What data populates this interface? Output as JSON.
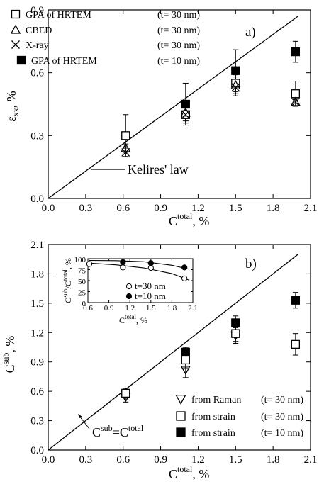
{
  "chart_data": [
    {
      "type": "scatter",
      "panel_label": "a)",
      "xlabel_base": "C",
      "xlabel_sup": "total",
      "xlabel_suffix": ", %",
      "ylabel_base": "ε",
      "ylabel_sub": "xx",
      "ylabel_suffix": ", %",
      "xlim": [
        0.0,
        2.1
      ],
      "ylim": [
        0.0,
        0.9
      ],
      "xticks": [
        "0.0",
        "0.3",
        "0.6",
        "0.9",
        "1.2",
        "1.5",
        "1.8",
        "2.1"
      ],
      "yticks": [
        "0.0",
        "0.3",
        "0.6",
        "0.9"
      ],
      "legend_placement": "top-left",
      "series": [
        {
          "name": "GPA of HRTEM",
          "param": "(t= 30 nm)",
          "marker": "square-open",
          "points": [
            {
              "x": 0.62,
              "y": 0.3,
              "err": 0.1
            },
            {
              "x": 1.1,
              "y": 0.4,
              "err": 0.04
            },
            {
              "x": 1.5,
              "y": 0.55,
              "err": 0.04
            },
            {
              "x": 1.98,
              "y": 0.5,
              "err": 0.06
            }
          ]
        },
        {
          "name": "CBED",
          "param": "(t= 30 nm)",
          "marker": "triangle-open",
          "points": [
            {
              "x": 0.62,
              "y": 0.24,
              "err": 0.02
            },
            {
              "x": 1.1,
              "y": 0.41,
              "err": 0.04
            },
            {
              "x": 1.5,
              "y": 0.54,
              "err": 0.04
            },
            {
              "x": 1.98,
              "y": 0.46,
              "err": 0.02
            }
          ]
        },
        {
          "name": "X-ray",
          "param": "(t= 30 nm)",
          "marker": "cross",
          "points": [
            {
              "x": 0.62,
              "y": 0.22,
              "err": 0.02
            },
            {
              "x": 1.1,
              "y": 0.4,
              "err": 0.04
            },
            {
              "x": 1.5,
              "y": 0.53,
              "err": 0.04
            },
            {
              "x": 1.98,
              "y": 0.46,
              "err": 0.02
            }
          ]
        },
        {
          "name": "GPA of HRTEM",
          "param": "(t= 10 nm)",
          "marker": "square-filled",
          "points": [
            {
              "x": 1.1,
              "y": 0.45,
              "err": 0.1
            },
            {
              "x": 1.5,
              "y": 0.61,
              "err": 0.1
            },
            {
              "x": 1.98,
              "y": 0.7,
              "err": 0.05
            }
          ]
        }
      ],
      "line": {
        "x": [
          0.0,
          2.0
        ],
        "y": [
          0.0,
          0.87
        ]
      },
      "annotation": {
        "text": "Kelires' law",
        "x": 0.34,
        "y": 0.2
      }
    },
    {
      "type": "scatter",
      "panel_label": "b)",
      "xlabel_base": "C",
      "xlabel_sup": "total",
      "xlabel_suffix": ", %",
      "ylabel_base": "C",
      "ylabel_sup": "sub",
      "ylabel_suffix": ", %",
      "xlim": [
        0.0,
        2.1
      ],
      "ylim": [
        0.0,
        2.1
      ],
      "xticks": [
        "0.0",
        "0.3",
        "0.6",
        "0.9",
        "1.2",
        "1.5",
        "1.8",
        "2.1"
      ],
      "yticks": [
        "0.0",
        "0.3",
        "0.6",
        "0.9",
        "1.2",
        "1.5",
        "1.8",
        "2.1"
      ],
      "legend_placement": "bottom-right",
      "series": [
        {
          "name": "from Raman",
          "param": "(t= 30 nm)",
          "marker": "triangle-down-open",
          "points": [
            {
              "x": 0.62,
              "y": 0.54,
              "err": 0.05
            },
            {
              "x": 1.1,
              "y": 0.82,
              "err": 0.08
            },
            {
              "x": 1.5,
              "y": 1.17,
              "err": 0.08
            }
          ]
        },
        {
          "name": "from strain",
          "param": "(t= 30 nm)",
          "marker": "square-open",
          "points": [
            {
              "x": 0.62,
              "y": 0.58,
              "err": 0.05
            },
            {
              "x": 1.1,
              "y": 0.92,
              "err": 0.08
            },
            {
              "x": 1.5,
              "y": 1.19,
              "err": 0.08
            },
            {
              "x": 1.98,
              "y": 1.08,
              "err": 0.11
            }
          ]
        },
        {
          "name": "from strain",
          "param": "(t= 10 nm)",
          "marker": "square-filled",
          "points": [
            {
              "x": 1.1,
              "y": 1.0,
              "err": 0.05
            },
            {
              "x": 1.5,
              "y": 1.3,
              "err": 0.07
            },
            {
              "x": 1.98,
              "y": 1.53,
              "err": 0.08
            }
          ]
        }
      ],
      "line": {
        "x": [
          0.0,
          2.0
        ],
        "y": [
          0.0,
          2.0
        ]
      },
      "annotation": {
        "base": "C",
        "sup1": "sub",
        "eq": "=C",
        "sup2": "total",
        "x": 0.55,
        "y": 0.2
      },
      "inset": {
        "xlabel_base": "C",
        "xlabel_sup": "total",
        "xlabel_suffix": ", %",
        "ylabel_base": "C",
        "ylabel_sup1": "sub",
        "ylabel_mid": "/C",
        "ylabel_sup2": "total",
        "ylabel_suffix": ", %",
        "xlim": [
          0.6,
          2.1
        ],
        "ylim": [
          0,
          100
        ],
        "xticks": [
          "0.6",
          "0.9",
          "1.2",
          "1.5",
          "1.8",
          "2.1"
        ],
        "yticks": [
          "0",
          "25",
          "50",
          "75",
          "100"
        ],
        "series": [
          {
            "name": "t=30 nm",
            "marker": "circle-open",
            "points": [
              {
                "x": 0.62,
                "y": 88,
                "err": 4
              },
              {
                "x": 1.1,
                "y": 80,
                "err": 4
              },
              {
                "x": 1.5,
                "y": 79,
                "err": 4
              },
              {
                "x": 1.98,
                "y": 55,
                "err": 3
              }
            ],
            "fit": {
              "x": [
                0.62,
                1.0,
                1.4,
                1.8,
                2.05
              ],
              "y": [
                90,
                86,
                79,
                66,
                51
              ]
            }
          },
          {
            "name": "t=10 nm",
            "marker": "circle-filled",
            "points": [
              {
                "x": 1.1,
                "y": 92,
                "err": 5
              },
              {
                "x": 1.5,
                "y": 90,
                "err": 5
              },
              {
                "x": 1.98,
                "y": 80,
                "err": 4
              }
            ],
            "fit": {
              "x": [
                0.62,
                1.0,
                1.4,
                1.8,
                2.05
              ],
              "y": [
                96,
                95.5,
                93,
                85,
                76
              ]
            }
          }
        ]
      }
    }
  ]
}
